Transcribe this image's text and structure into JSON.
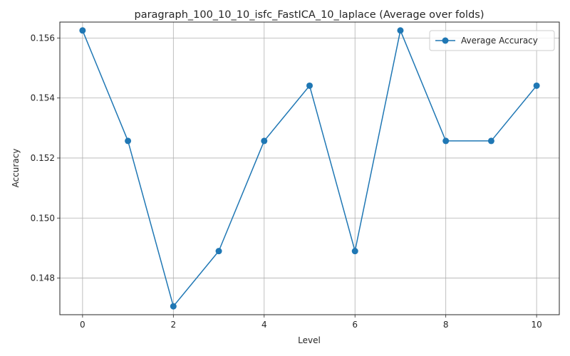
{
  "chart_data": {
    "type": "line",
    "title": "paragraph_100_10_10_isfc_FastICA_10_laplace (Average over folds)",
    "xlabel": "Level",
    "ylabel": "Accuracy",
    "x": [
      0,
      1,
      2,
      3,
      4,
      5,
      6,
      7,
      8,
      9,
      10
    ],
    "series": [
      {
        "name": "Average Accuracy",
        "color": "#1f77b4",
        "marker": "circle",
        "values": [
          0.15625,
          0.15257,
          0.14706,
          0.1489,
          0.15257,
          0.15441,
          0.1489,
          0.15625,
          0.15257,
          0.15257,
          0.15441
        ]
      }
    ],
    "xlim": [
      -0.5,
      10.5
    ],
    "ylim": [
      0.14678,
      0.15653
    ],
    "xticks": [
      0,
      2,
      4,
      6,
      8,
      10
    ],
    "yticks": [
      0.148,
      0.15,
      0.152,
      0.154,
      0.156
    ],
    "ytick_labels": [
      "0.148",
      "0.150",
      "0.152",
      "0.154",
      "0.156"
    ],
    "grid": true,
    "legend_position": "top-right"
  }
}
